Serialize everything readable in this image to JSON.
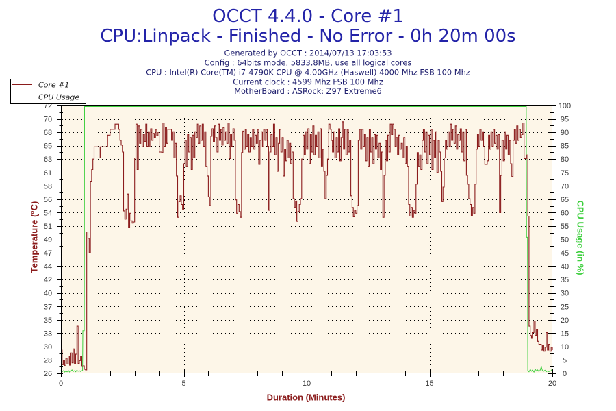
{
  "chart_data": {
    "type": "line",
    "title": "OCCT 4.4.0 - Core #1",
    "subtitle": "CPU:Linpack - Finished - No Error - 0h 20m 00s",
    "info_lines": [
      "Generated by OCCT : 2014/07/13 17:03:53",
      "Config : 64bits mode, 5833.8MB, use all logical cores",
      "CPU : Intel(R) Core(TM) i7-4790K CPU @ 4.00GHz (Haswell) 4000 Mhz FSB 100 Mhz",
      "Current clock : 4599 Mhz FSB 100 Mhz",
      "MotherBoard : ASRock: Z97 Extreme6"
    ],
    "xlabel": "Duration (Minutes)",
    "ylabel": "Temperature (°C)",
    "y2label": "CPU Usage (in %)",
    "xlim": [
      0,
      20
    ],
    "ylim": [
      26,
      72
    ],
    "y2lim": [
      0,
      100
    ],
    "xticks": [
      "0",
      "5",
      "10",
      "15",
      "20"
    ],
    "yticks": [
      "26",
      "28",
      "30",
      "33",
      "35",
      "37",
      "40",
      "42",
      "44",
      "47",
      "49",
      "51",
      "54",
      "56",
      "58",
      "61",
      "63",
      "65",
      "68",
      "70",
      "72"
    ],
    "y2ticks": [
      "0",
      "5",
      "10",
      "15",
      "20",
      "25",
      "30",
      "35",
      "40",
      "45",
      "50",
      "55",
      "60",
      "65",
      "70",
      "75",
      "80",
      "85",
      "90",
      "95",
      "100"
    ],
    "grid": true,
    "legend_position": "top-left",
    "series": [
      {
        "name": "Core #1",
        "axis": "left",
        "color": "#8b1c1c",
        "x_start": 0,
        "x_step": 0.05,
        "values": [
          30.0,
          27.5,
          28.3,
          27.3,
          28.6,
          27.6,
          29.0,
          27.4,
          29.5,
          27.8,
          30.2,
          27.6,
          29.3,
          34.1,
          27.7,
          28.2,
          29.0,
          27.2,
          27.3,
          26.7,
          26.6,
          50.3,
          49.2,
          46.7,
          59.0,
          61.0,
          62.8,
          64.9,
          64.9,
          64.9,
          64.9,
          63.0,
          64.9,
          64.9,
          64.9,
          64.9,
          64.9,
          64.9,
          66.9,
          66.9,
          67.9,
          67.9,
          67.9,
          67.9,
          68.8,
          68.8,
          68.8,
          67.9,
          66.0,
          65.2,
          64.0,
          53.9,
          52.5,
          54.2,
          56.8,
          51.0,
          53.5,
          52.2,
          51.8,
          52.0,
          63.0,
          68.8,
          61.0,
          68.5,
          65.5,
          67.9,
          64.9,
          67.0,
          65.8,
          68.8,
          65.0,
          67.5,
          64.9,
          68.0,
          66.0,
          67.2,
          66.5,
          67.9,
          66.8,
          67.4,
          64.0,
          64.0,
          63.9,
          69.0,
          65.0,
          68.2,
          65.5,
          67.9,
          67.9,
          67.9,
          66.0,
          67.5,
          63.0,
          65.5,
          59.9,
          52.8,
          55.5,
          56.5,
          55.0,
          54.2,
          62.0,
          66.0,
          61.5,
          67.0,
          64.0,
          66.5,
          61.0,
          66.9,
          63.0,
          67.5,
          66.5,
          68.8,
          65.5,
          68.5,
          66.0,
          68.8,
          65.0,
          67.5,
          61.5,
          59.9,
          56.3,
          54.8,
          66.7,
          68.0,
          65.8,
          68.5,
          66.5,
          64.0,
          68.8,
          66.0,
          67.9,
          65.2,
          68.2,
          66.0,
          67.5,
          65.5,
          69.0,
          62.9,
          67.0,
          65.0,
          68.0,
          66.0,
          55.8,
          53.5,
          55.0,
          53.8,
          52.8,
          63.9,
          67.6,
          64.5,
          67.9,
          65.0,
          67.0,
          64.0,
          66.5,
          65.0,
          67.9,
          64.5,
          66.9,
          65.5,
          67.9,
          61.9,
          66.0,
          67.5,
          64.9,
          67.9,
          66.0,
          67.9,
          65.0,
          54.0,
          64.0,
          67.0,
          65.0,
          68.8,
          63.5,
          66.5,
          60.7,
          65.5,
          67.9,
          64.0,
          66.5,
          59.9,
          64.5,
          62.5,
          66.0,
          63.0,
          65.5,
          62.0,
          64.0,
          56.0,
          54.5,
          55.6,
          52.1,
          53.8,
          55.0,
          56.0,
          62.8,
          66.9,
          63.5,
          67.5,
          64.5,
          68.0,
          62.0,
          67.0,
          64.0,
          68.5,
          63.5,
          66.9,
          65.0,
          67.5,
          63.0,
          68.0,
          61.5,
          64.5,
          60.7,
          56.0,
          60.0,
          62.8,
          68.8,
          67.9,
          66.0,
          64.0,
          67.5,
          63.0,
          66.5,
          64.0,
          68.0,
          62.5,
          66.5,
          69.2,
          64.5,
          67.9,
          63.5,
          67.9,
          64.0,
          66.0,
          56.5,
          54.5,
          52.9,
          54.0,
          53.5,
          54.8,
          66.0,
          67.9,
          64.5,
          67.9,
          65.0,
          67.0,
          62.5,
          66.5,
          61.5,
          67.9,
          64.0,
          66.5,
          62.0,
          67.0,
          64.5,
          66.9,
          63.0,
          65.5,
          61.0,
          64.0,
          52.8,
          60.0,
          66.0,
          62.5,
          66.9,
          64.0,
          68.8,
          67.0,
          68.8,
          67.9,
          65.0,
          66.5,
          63.5,
          66.9,
          64.5,
          65.5,
          63.0,
          66.5,
          62.0,
          65.0,
          61.5,
          55.0,
          53.0,
          54.5,
          52.8,
          54.0,
          53.5,
          58.5,
          63.9,
          61.5,
          63.5,
          61.0,
          66.0,
          67.9,
          64.0,
          67.5,
          62.0,
          66.9,
          63.5,
          67.9,
          61.0,
          66.0,
          63.0,
          67.5,
          60.5,
          66.0,
          64.0,
          60.7,
          55.5,
          58.0,
          63.0,
          66.0,
          64.5,
          67.5,
          65.0,
          68.8,
          66.0,
          67.9,
          65.5,
          68.5,
          64.5,
          67.0,
          66.0,
          68.0,
          64.0,
          67.5,
          62.5,
          67.9,
          60.0,
          58.5,
          56.0,
          55.0,
          53.0,
          54.5,
          53.5,
          58.5,
          64.5,
          67.0,
          65.0,
          67.9,
          66.0,
          67.5,
          64.9,
          61.9,
          61.9,
          62.5,
          66.9,
          64.5,
          67.5,
          65.0,
          67.9,
          65.5,
          66.9,
          64.5,
          67.0,
          53.6,
          60.0,
          66.0,
          62.5,
          67.5,
          64.5,
          66.9,
          63.5,
          66.0,
          62.0,
          59.8,
          66.0,
          67.9,
          65.5,
          68.5,
          66.0,
          67.9,
          66.5,
          67.0,
          69.0,
          62.9,
          62.9,
          63.5,
          53.0,
          34.1,
          32.5,
          32.0,
          33.0,
          35.0,
          32.5,
          33.5,
          31.5,
          31.0,
          31.0,
          30.0,
          30.8,
          29.8,
          30.5,
          33.0,
          30.0,
          31.0,
          29.8,
          30.5,
          30.0
        ]
      },
      {
        "name": "CPU Usage",
        "axis": "right",
        "color": "#3ecf3e",
        "points": [
          [
            0,
            1.2
          ],
          [
            0.05,
            0.6
          ],
          [
            0.1,
            1.0
          ],
          [
            0.15,
            0.5
          ],
          [
            0.2,
            0.9
          ],
          [
            0.25,
            0.6
          ],
          [
            0.3,
            1.1
          ],
          [
            0.35,
            0.5
          ],
          [
            0.4,
            0.8
          ],
          [
            0.45,
            1.3
          ],
          [
            0.5,
            0.7
          ],
          [
            0.55,
            1.0
          ],
          [
            0.6,
            0.6
          ],
          [
            0.65,
            1.2
          ],
          [
            0.7,
            0.8
          ],
          [
            0.75,
            1.0
          ],
          [
            0.8,
            0.7
          ],
          [
            0.85,
            1.0
          ],
          [
            0.88,
            1.0
          ],
          [
            0.89,
            16
          ],
          [
            0.95,
            16
          ],
          [
            0.96,
            100
          ],
          [
            18.94,
            100
          ],
          [
            18.95,
            51
          ],
          [
            18.99,
            51
          ],
          [
            19.0,
            1.0
          ],
          [
            19.05,
            0.6
          ],
          [
            19.1,
            1.5
          ],
          [
            19.15,
            0.8
          ],
          [
            19.2,
            1.2
          ],
          [
            19.25,
            0.5
          ],
          [
            19.3,
            1.6
          ],
          [
            19.35,
            0.9
          ],
          [
            19.4,
            1.3
          ],
          [
            19.45,
            0.7
          ],
          [
            19.5,
            1.1
          ],
          [
            19.55,
            2.5
          ],
          [
            19.6,
            1.0
          ],
          [
            19.65,
            0.8
          ],
          [
            19.7,
            1.2
          ],
          [
            19.75,
            0.6
          ],
          [
            19.8,
            0.9
          ],
          [
            19.85,
            0.7
          ],
          [
            19.9,
            0.8
          ],
          [
            19.95,
            1.0
          ],
          [
            20,
            1.8
          ]
        ]
      }
    ]
  },
  "colors": {
    "title": "#2323a8",
    "info": "#1f1f6e",
    "axis_title_left": "#8b1c1c",
    "axis_title_right": "#3ecf3e",
    "plot_background": "#fdf6e8"
  }
}
